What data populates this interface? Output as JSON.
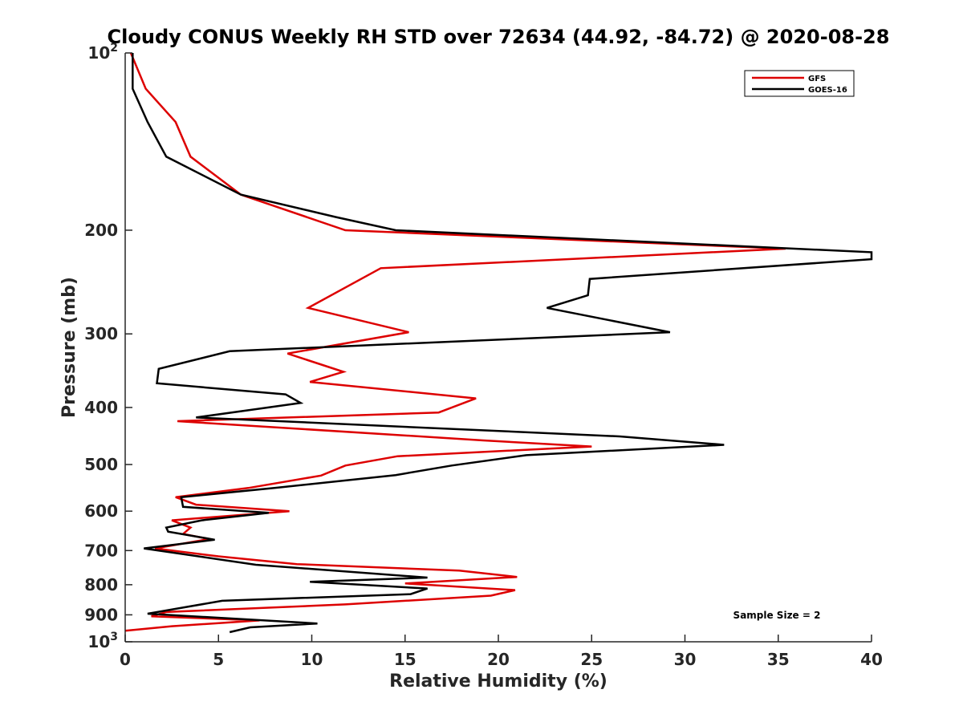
{
  "chart_data": {
    "type": "line",
    "title": "Cloudy CONUS Weekly RH STD over 72634 (44.92, -84.72) @ 2020-08-28",
    "xlabel": "Relative Humidity (%)",
    "ylabel": "Pressure (mb)",
    "xlim": [
      0,
      40
    ],
    "ylim": [
      100,
      1000
    ],
    "y_scale": "log",
    "y_reversed": true,
    "grid": false,
    "legend_position": "top-right",
    "x_ticks": [
      {
        "value": 0,
        "label": "0"
      },
      {
        "value": 5,
        "label": "5"
      },
      {
        "value": 10,
        "label": "10"
      },
      {
        "value": 15,
        "label": "15"
      },
      {
        "value": 20,
        "label": "20"
      },
      {
        "value": 25,
        "label": "25"
      },
      {
        "value": 30,
        "label": "30"
      },
      {
        "value": 35,
        "label": "35"
      },
      {
        "value": 40,
        "label": "40"
      }
    ],
    "y_ticks": [
      {
        "value": 100,
        "base": "10",
        "exp": "2"
      },
      {
        "value": 200,
        "base": "200",
        "exp": ""
      },
      {
        "value": 300,
        "base": "300",
        "exp": ""
      },
      {
        "value": 400,
        "base": "400",
        "exp": ""
      },
      {
        "value": 500,
        "base": "500",
        "exp": ""
      },
      {
        "value": 600,
        "base": "600",
        "exp": ""
      },
      {
        "value": 700,
        "base": "700",
        "exp": ""
      },
      {
        "value": 800,
        "base": "800",
        "exp": ""
      },
      {
        "value": 900,
        "base": "900",
        "exp": ""
      },
      {
        "value": 1000,
        "base": "10",
        "exp": "3"
      }
    ],
    "annotation": "Sample Size = 2",
    "series": [
      {
        "name": "GFS",
        "color": "#dd0000",
        "points": [
          [
            0.3,
            100
          ],
          [
            1.1,
            115
          ],
          [
            2.7,
            131
          ],
          [
            3.5,
            150
          ],
          [
            6.2,
            174
          ],
          [
            11.8,
            200
          ],
          [
            35.4,
            215
          ],
          [
            13.7,
            232
          ],
          [
            9.8,
            271
          ],
          [
            15.2,
            298
          ],
          [
            8.7,
            324
          ],
          [
            11.7,
            348
          ],
          [
            9.9,
            362
          ],
          [
            18.8,
            386
          ],
          [
            16.8,
            408
          ],
          [
            2.8,
            422
          ],
          [
            19.2,
            455
          ],
          [
            25.0,
            466
          ],
          [
            14.6,
            484
          ],
          [
            11.8,
            502
          ],
          [
            10.5,
            522
          ],
          [
            6.6,
            548
          ],
          [
            2.7,
            568
          ],
          [
            3.8,
            585
          ],
          [
            8.8,
            600
          ],
          [
            2.5,
            622
          ],
          [
            3.5,
            640
          ],
          [
            3.1,
            656
          ],
          [
            4.5,
            669
          ],
          [
            1.6,
            694
          ],
          [
            5.0,
            716
          ],
          [
            9.2,
            738
          ],
          [
            17.9,
            757
          ],
          [
            21.0,
            776
          ],
          [
            15.0,
            796
          ],
          [
            20.9,
            817
          ],
          [
            19.6,
            835
          ],
          [
            11.8,
            864
          ],
          [
            2.2,
            890
          ],
          [
            1.4,
            905
          ],
          [
            7.2,
            920
          ],
          [
            2.5,
            941
          ],
          [
            0.0,
            958
          ]
        ]
      },
      {
        "name": "GOES-16",
        "color": "#000000",
        "points": [
          [
            0.4,
            100
          ],
          [
            0.4,
            115
          ],
          [
            1.2,
            131
          ],
          [
            2.2,
            150
          ],
          [
            6.2,
            174
          ],
          [
            11.3,
            190
          ],
          [
            14.5,
            200
          ],
          [
            40.0,
            218
          ],
          [
            40.0,
            224
          ],
          [
            24.9,
            242
          ],
          [
            24.8,
            258
          ],
          [
            22.6,
            271
          ],
          [
            29.2,
            298
          ],
          [
            5.6,
            321
          ],
          [
            1.8,
            344
          ],
          [
            1.7,
            364
          ],
          [
            8.6,
            380
          ],
          [
            9.4,
            393
          ],
          [
            3.8,
            416
          ],
          [
            26.5,
            448
          ],
          [
            32.1,
            463
          ],
          [
            21.5,
            482
          ],
          [
            17.5,
            502
          ],
          [
            14.5,
            521
          ],
          [
            8.0,
            548
          ],
          [
            3.0,
            568
          ],
          [
            3.1,
            590
          ],
          [
            7.7,
            604
          ],
          [
            4.1,
            622
          ],
          [
            2.2,
            640
          ],
          [
            2.3,
            650
          ],
          [
            4.8,
            671
          ],
          [
            1.0,
            694
          ],
          [
            7.0,
            740
          ],
          [
            16.2,
            778
          ],
          [
            9.9,
            791
          ],
          [
            16.2,
            812
          ],
          [
            15.3,
            830
          ],
          [
            5.2,
            852
          ],
          [
            1.2,
            896
          ],
          [
            10.3,
            931
          ],
          [
            6.7,
            945
          ],
          [
            5.6,
            963
          ]
        ]
      }
    ]
  }
}
